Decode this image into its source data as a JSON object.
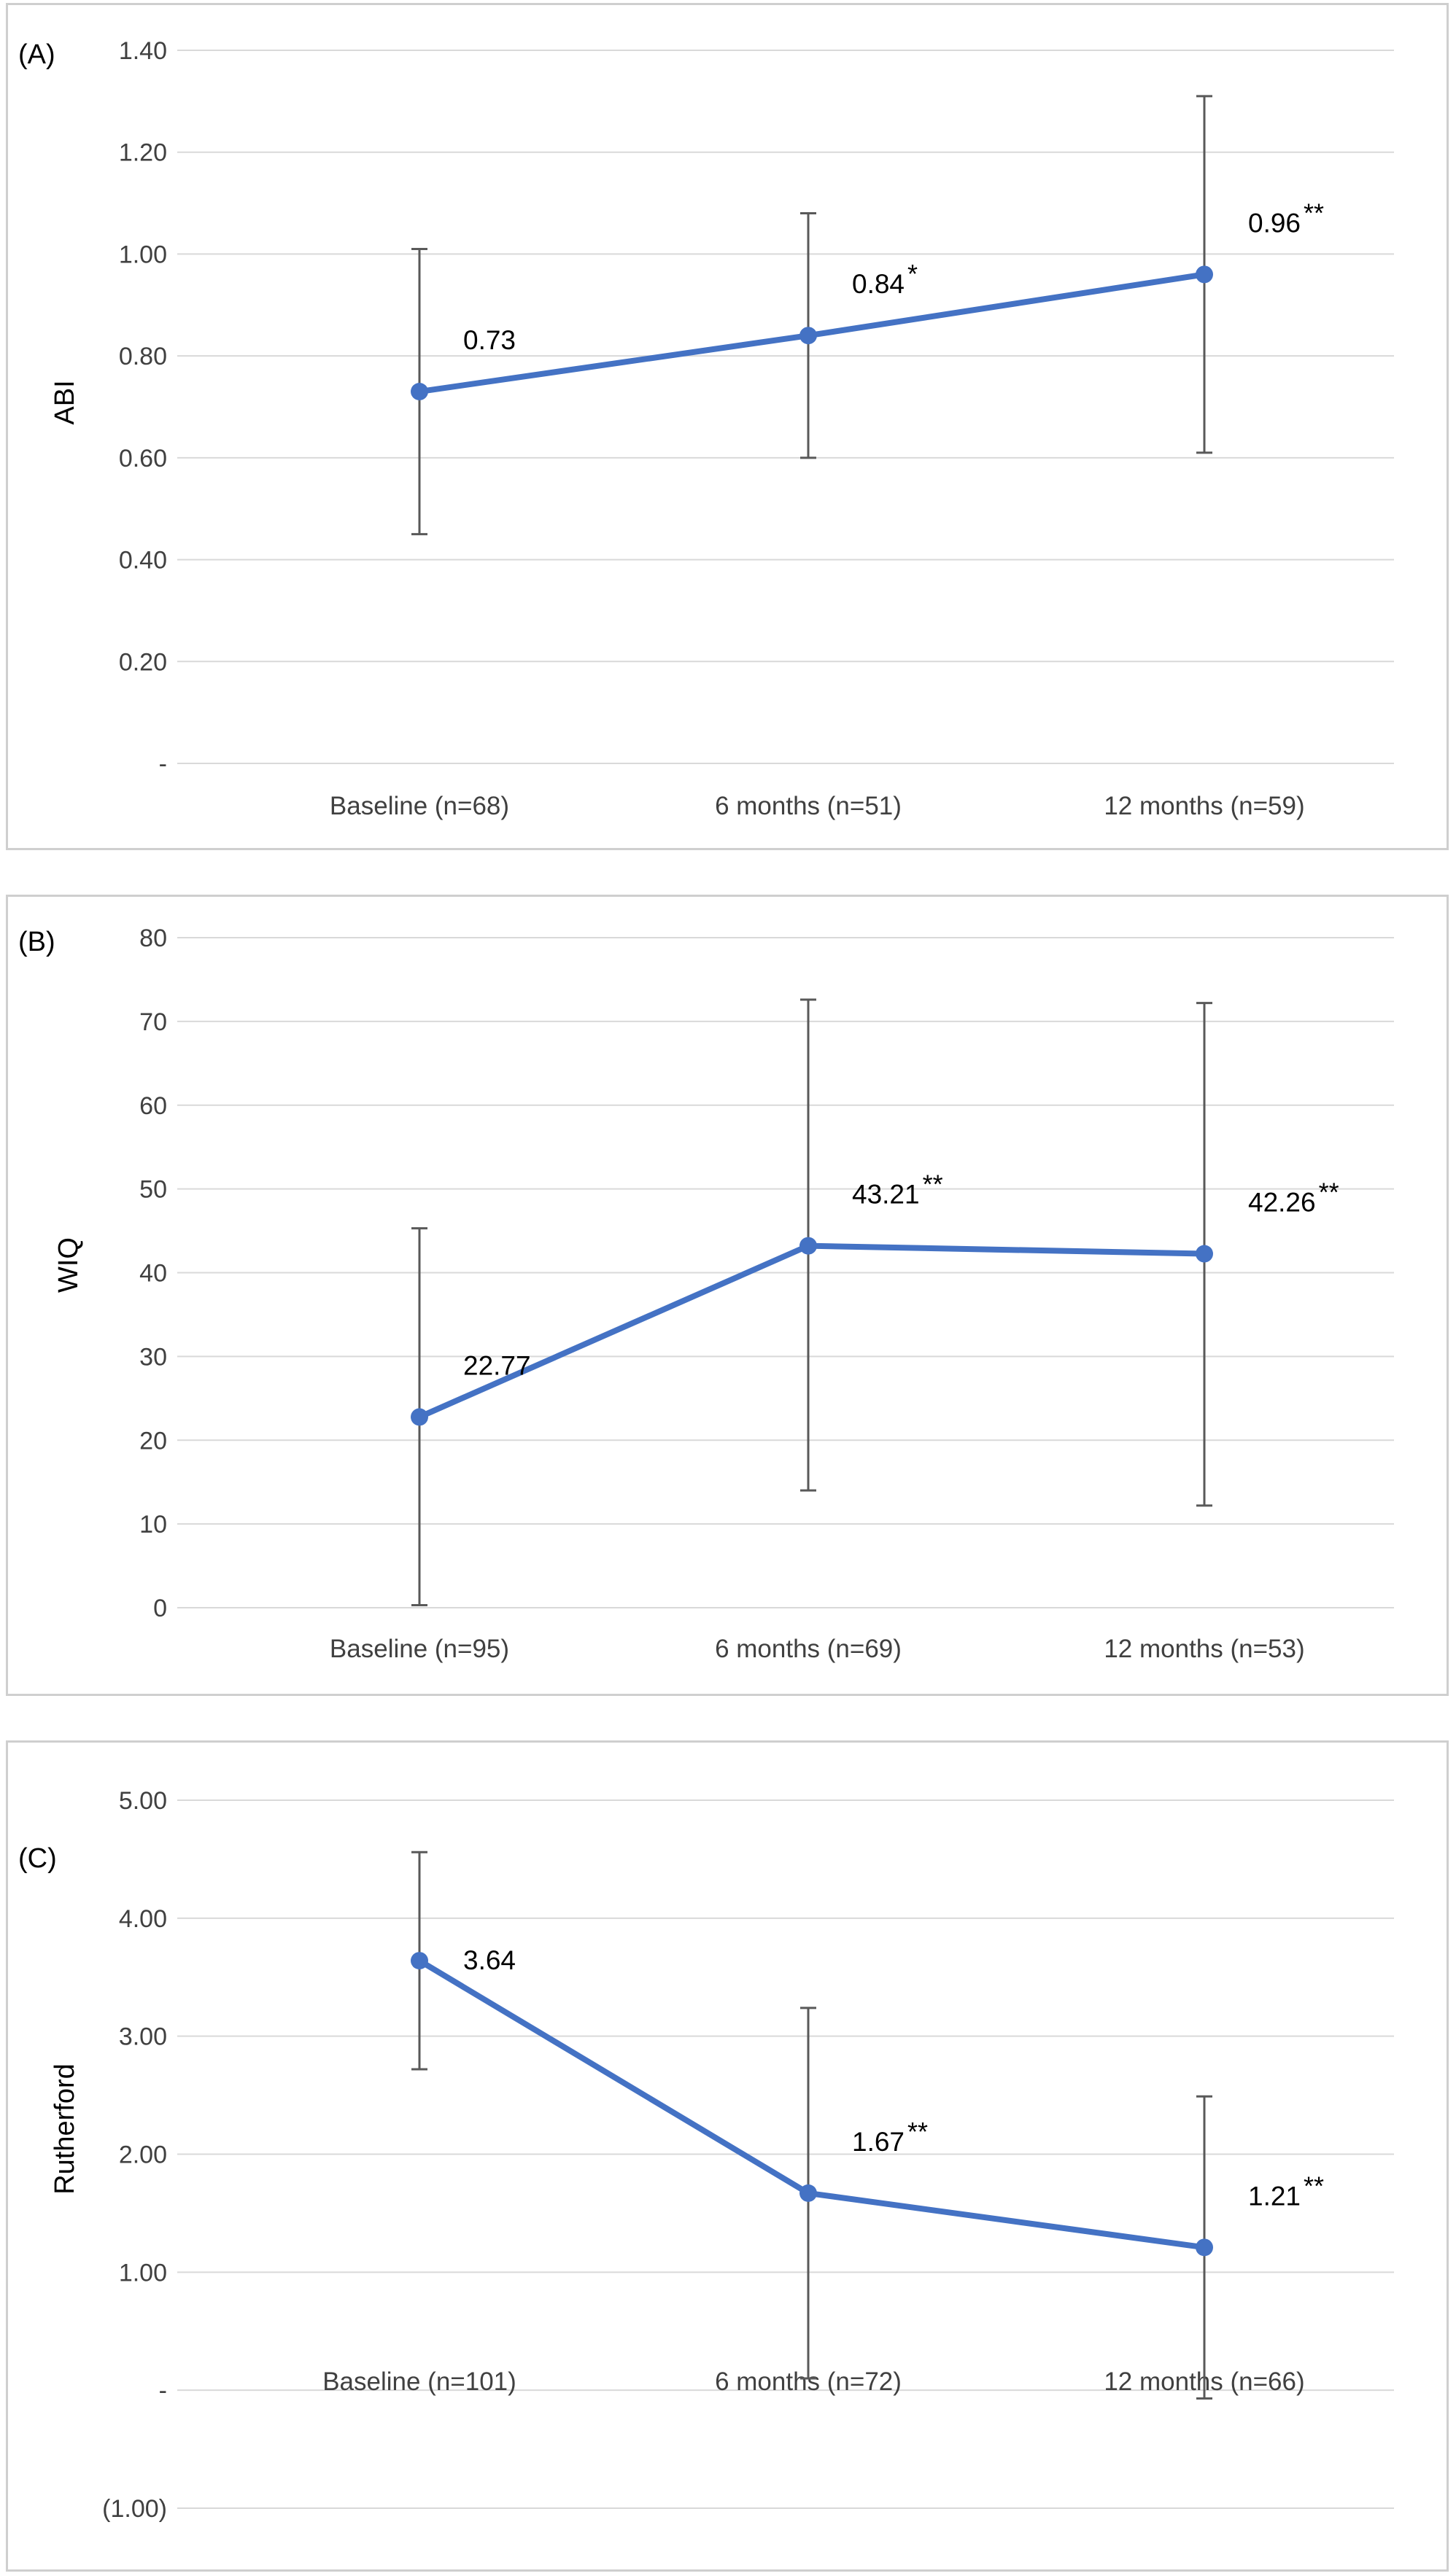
{
  "chart_data": [
    {
      "type": "line",
      "panel_label": "(A)",
      "ylabel": "ABI",
      "categories": [
        "Baseline (n=68)",
        "6 months (n=51)",
        "12 months (n=59)"
      ],
      "values": [
        0.73,
        0.84,
        0.96
      ],
      "data_labels": [
        "0.73",
        "0.84",
        "0.96"
      ],
      "significance": [
        "",
        "*",
        "**"
      ],
      "error_low": [
        0.45,
        0.6,
        0.61
      ],
      "error_high": [
        1.01,
        1.08,
        1.31
      ],
      "yticks": [
        0,
        0.2,
        0.4,
        0.6,
        0.8,
        1.0,
        1.2,
        1.4
      ],
      "ytick_labels": [
        "-",
        "0.20",
        "0.40",
        "0.60",
        "0.80",
        "1.00",
        "1.20",
        "1.40"
      ],
      "ylim": [
        0,
        1.4
      ],
      "grid": true,
      "line_color": "#4472c4",
      "errorbar_color": "#595959"
    },
    {
      "type": "line",
      "panel_label": "(B)",
      "ylabel": "WIQ",
      "categories": [
        "Baseline (n=95)",
        "6 months (n=69)",
        "12 months (n=53)"
      ],
      "values": [
        22.77,
        43.21,
        42.26
      ],
      "data_labels": [
        "22.77",
        "43.21",
        "42.26"
      ],
      "significance": [
        "",
        "**",
        "**"
      ],
      "error_low": [
        0.3,
        14.0,
        12.2
      ],
      "error_high": [
        45.3,
        72.6,
        72.2
      ],
      "yticks": [
        0,
        10,
        20,
        30,
        40,
        50,
        60,
        70,
        80
      ],
      "ytick_labels": [
        "0",
        "10",
        "20",
        "30",
        "40",
        "50",
        "60",
        "70",
        "80"
      ],
      "ylim": [
        0,
        80
      ],
      "grid": true,
      "line_color": "#4472c4",
      "errorbar_color": "#595959"
    },
    {
      "type": "line",
      "panel_label": "(C)",
      "ylabel": "Rutherford",
      "categories": [
        "Baseline (n=101)",
        "6 months (n=72)",
        "12 months (n=66)"
      ],
      "values": [
        3.64,
        1.67,
        1.21
      ],
      "data_labels": [
        "3.64",
        "1.67",
        "1.21"
      ],
      "significance": [
        "",
        "**",
        "**"
      ],
      "error_low": [
        2.72,
        0.1,
        -0.07
      ],
      "error_high": [
        4.56,
        3.24,
        2.49
      ],
      "yticks": [
        -1,
        0,
        1,
        2,
        3,
        4,
        5
      ],
      "ytick_labels": [
        "(1.00)",
        "-",
        "1.00",
        "2.00",
        "3.00",
        "4.00",
        "5.00"
      ],
      "ylim": [
        -1,
        5
      ],
      "category_axis_value": 0,
      "grid": true,
      "line_color": "#4472c4",
      "errorbar_color": "#595959"
    }
  ]
}
